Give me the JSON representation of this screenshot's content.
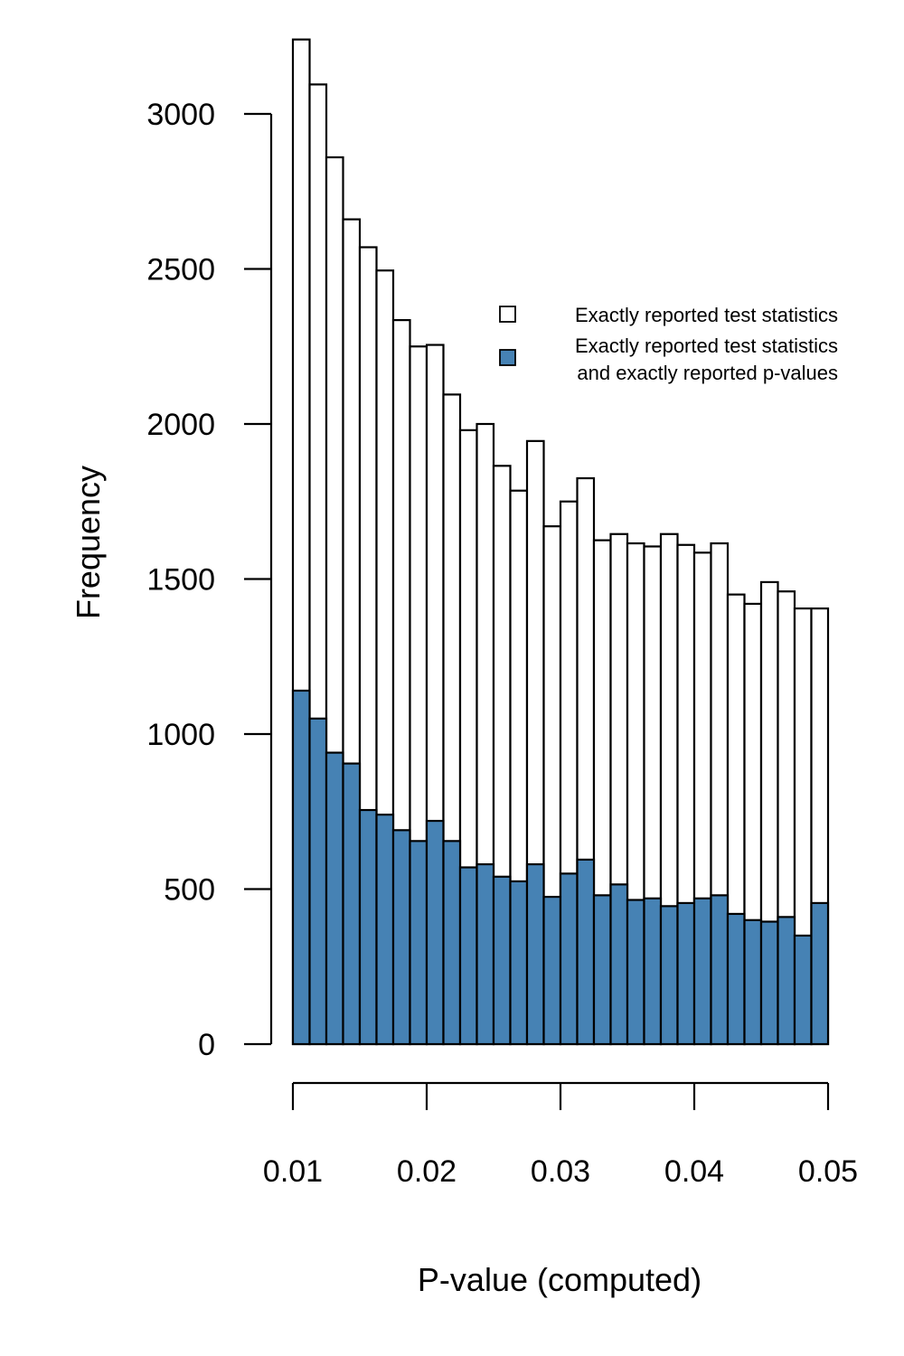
{
  "chart_data": {
    "type": "bar",
    "title": "",
    "xlabel": "P-value (computed)",
    "ylabel": "Frequency",
    "xlim": [
      0.01,
      0.05
    ],
    "ylim": [
      0,
      3000
    ],
    "xticks": [
      0.01,
      0.02,
      0.03,
      0.04,
      0.05
    ],
    "xtick_labels": [
      "0.01",
      "0.02",
      "0.03",
      "0.04",
      "0.05"
    ],
    "yticks": [
      0,
      500,
      1000,
      1500,
      2000,
      2500,
      3000
    ],
    "ytick_labels": [
      "0",
      "500",
      "1000",
      "1500",
      "2000",
      "2500",
      "3000"
    ],
    "bin_width": 0.00125,
    "bin_starts": [
      0.01,
      0.01125,
      0.0125,
      0.01375,
      0.015,
      0.01625,
      0.0175,
      0.01875,
      0.02,
      0.02125,
      0.0225,
      0.02375,
      0.025,
      0.02625,
      0.0275,
      0.02875,
      0.03,
      0.03125,
      0.0325,
      0.03375,
      0.035,
      0.03625,
      0.0375,
      0.03875,
      0.04,
      0.04125,
      0.0425,
      0.04375,
      0.045,
      0.04625,
      0.0475,
      0.04875
    ],
    "grid": false,
    "legend_position": "top-right",
    "series": [
      {
        "name": "Exactly reported test statistics",
        "color": "#ffffff",
        "values": [
          3240,
          3095,
          2860,
          2660,
          2570,
          2495,
          2335,
          2250,
          2255,
          2095,
          1980,
          2000,
          1865,
          1785,
          1945,
          1670,
          1750,
          1825,
          1625,
          1645,
          1615,
          1605,
          1645,
          1610,
          1585,
          1615,
          1450,
          1420,
          1490,
          1460,
          1405,
          1405
        ]
      },
      {
        "name": "Exactly reported test statistics\nand exactly reported p-values",
        "name_lines": [
          "Exactly reported test statistics",
          "and exactly reported p-values"
        ],
        "color": "#4682b4",
        "values": [
          1140,
          1050,
          940,
          905,
          755,
          740,
          690,
          655,
          720,
          655,
          570,
          580,
          540,
          525,
          580,
          475,
          550,
          595,
          480,
          515,
          465,
          470,
          445,
          455,
          470,
          480,
          420,
          400,
          395,
          410,
          350,
          455
        ]
      }
    ]
  }
}
